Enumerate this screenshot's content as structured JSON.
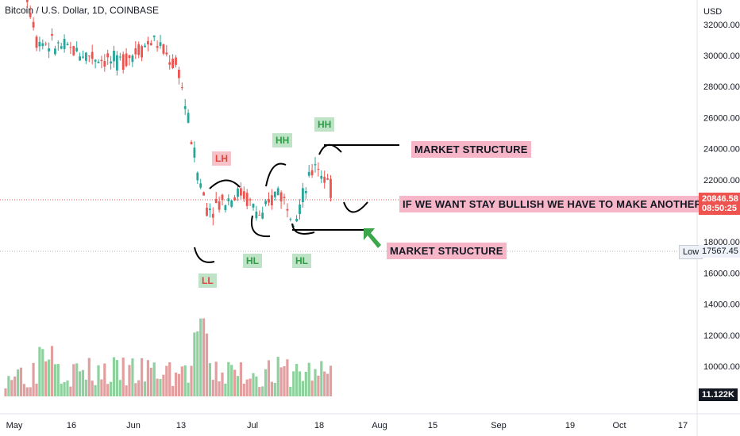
{
  "header": {
    "title": "Bitcoin / U.S. Dollar, 1D, COINBASE"
  },
  "axis": {
    "currency": "USD",
    "price_ticks": [
      "32000.00",
      "30000.00",
      "28000.00",
      "26000.00",
      "24000.00",
      "22000.00",
      "18000.00",
      "16000.00",
      "14000.00",
      "12000.00",
      "10000.00"
    ],
    "time_ticks": [
      "May",
      "16",
      "Jun",
      "13",
      "Jul",
      "18",
      "Aug",
      "15",
      "Sep",
      "19",
      "Oct",
      "17"
    ]
  },
  "badges": {
    "last_price": "20846.58",
    "countdown": "08:50:25",
    "low_label": "Low",
    "low_value": "17567.45",
    "volume": "11.122K"
  },
  "annotations": {
    "lh": "LH",
    "ll": "LL",
    "hh1": "HH",
    "hl1": "HL",
    "hl2": "HL",
    "hh2": "HH",
    "ms_top": "MARKET STRUCTURE",
    "ms_bottom": "MARKET STRUCTURE",
    "bullish_note": "IF WE WANT STAY BULLISH WE HAVE TO MAKE ANOTHER HL"
  },
  "colors": {
    "up": "#26a69a",
    "down": "#ef5350",
    "up_vol": "#8fd19e",
    "down_vol": "#e39ea0"
  },
  "chart_data": {
    "type": "candlestick",
    "title": "Bitcoin / U.S. Dollar, 1D, COINBASE",
    "ylabel": "USD",
    "ylim": [
      10000,
      33000
    ],
    "series": [
      {
        "name": "BTCUSD",
        "segments": [
          {
            "from": 0,
            "to": 10,
            "start": 38500,
            "end": 31500
          },
          {
            "from": 10,
            "to": 36,
            "start": 31000,
            "end": 29500
          },
          {
            "from": 36,
            "to": 48,
            "start": 29500,
            "end": 31000
          },
          {
            "from": 48,
            "to": 56,
            "start": 31000,
            "end": 29000
          },
          {
            "from": 56,
            "to": 62,
            "start": 29000,
            "end": 22500
          },
          {
            "from": 62,
            "to": 66,
            "start": 22500,
            "end": 19500
          },
          {
            "from": 66,
            "to": 72,
            "start": 20200,
            "end": 20800
          },
          {
            "from": 72,
            "to": 77,
            "start": 20800,
            "end": 21300
          },
          {
            "from": 77,
            "to": 83,
            "start": 21000,
            "end": 19500
          },
          {
            "from": 83,
            "to": 89,
            "start": 19600,
            "end": 21800
          },
          {
            "from": 89,
            "to": 94,
            "start": 21000,
            "end": 19500
          },
          {
            "from": 94,
            "to": 100,
            "start": 19800,
            "end": 23000
          },
          {
            "from": 100,
            "to": 106,
            "start": 23200,
            "end": 21000
          }
        ]
      }
    ]
  }
}
